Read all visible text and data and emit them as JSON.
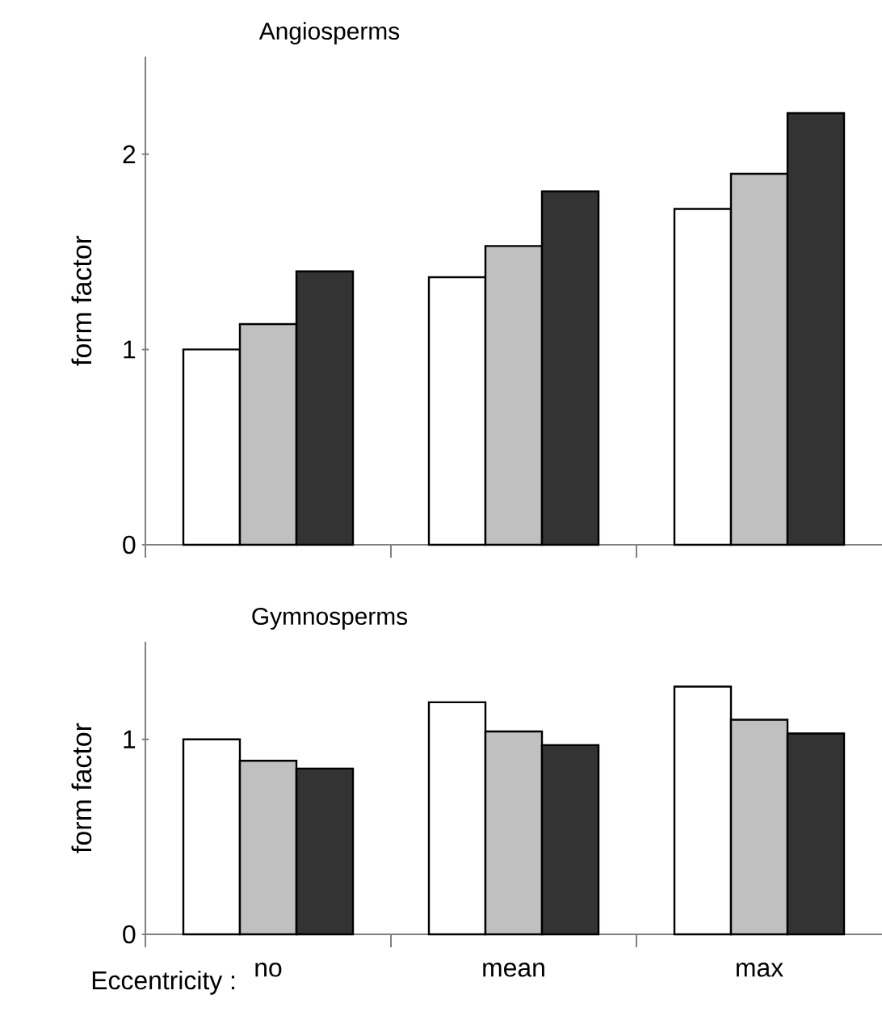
{
  "chart_data": [
    {
      "type": "bar",
      "title": "Angiosperms",
      "ylabel": "form factor",
      "categories": [
        null,
        null,
        null
      ],
      "series": [
        {
          "color": "#ffffff",
          "values": [
            1.0,
            1.37,
            1.72
          ]
        },
        {
          "color": "#c0c0c0",
          "values": [
            1.13,
            1.53,
            1.9
          ]
        },
        {
          "color": "#333333",
          "values": [
            1.4,
            1.81,
            2.21
          ]
        }
      ],
      "ylim": [
        0,
        2.5
      ],
      "yticks": [
        0,
        1,
        2
      ],
      "tick_labels": "y"
    },
    {
      "type": "bar",
      "title": "Gymnosperms",
      "ylabel": "form factor",
      "xlabel": "Eccentricity :",
      "categories": [
        "no",
        "mean",
        "max"
      ],
      "series": [
        {
          "color": "#ffffff",
          "values": [
            1.0,
            1.19,
            1.27
          ]
        },
        {
          "color": "#c0c0c0",
          "values": [
            0.89,
            1.04,
            1.1
          ]
        },
        {
          "color": "#333333",
          "values": [
            0.85,
            0.97,
            1.03
          ]
        }
      ],
      "ylim": [
        0,
        1.5
      ],
      "yticks": [
        0,
        1
      ]
    }
  ]
}
